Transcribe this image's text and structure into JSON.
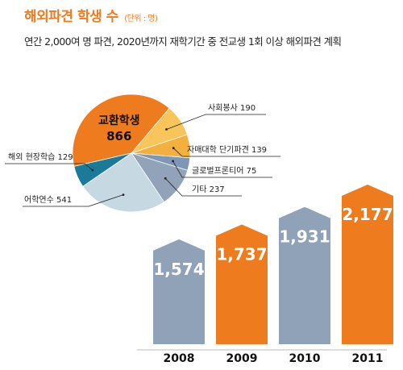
{
  "header": {
    "title": "해외파견 학생 수",
    "unit": "(단위 : 명)",
    "subtitle": "연간 2,000여 명 파견, 2020년까지 재학기간 중 전교생 1회 이상 해외파견 계획"
  },
  "chart_data": [
    {
      "type": "pie",
      "slices": [
        {
          "label": "교환학생",
          "value_label": "866",
          "value": 866,
          "color": "#ee7b1e"
        },
        {
          "label": "사회봉사 190",
          "value": 190,
          "color": "#f7c55a"
        },
        {
          "label": "자매대학 단기파견 139",
          "value": 139,
          "color": "#f4b03e"
        },
        {
          "label": "글로벌프론티어 75",
          "value": 75,
          "color": "#7d97b6"
        },
        {
          "label": "기타 237",
          "value": 237,
          "color": "#92a3b9"
        },
        {
          "label": "어학연수 541",
          "value": 541,
          "color": "#c6d8e2"
        },
        {
          "label": "해외 현장학습 129",
          "value": 129,
          "color": "#1c7a99"
        }
      ]
    },
    {
      "type": "bar",
      "categories": [
        "2008",
        "2009",
        "2010",
        "2011"
      ],
      "values": [
        1574,
        1737,
        1931,
        2177
      ],
      "value_labels": [
        "1,574",
        "1,737",
        "1,931",
        "2,177"
      ],
      "colors": [
        "#8fa2b8",
        "#ee7b1e",
        "#8fa2b8",
        "#ee7b1e"
      ]
    }
  ]
}
